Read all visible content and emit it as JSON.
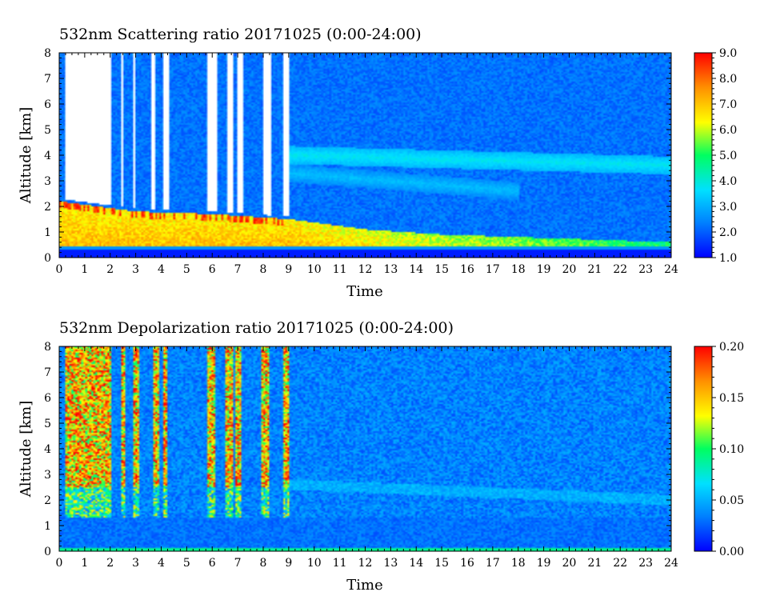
{
  "panels": [
    {
      "title": "532nm Scattering ratio  20171025 (0:00-24:00)",
      "xlabel": "Time",
      "ylabel": "Altitude [km]",
      "x_ticks": [
        "0",
        "1",
        "2",
        "3",
        "4",
        "5",
        "6",
        "7",
        "8",
        "9",
        "10",
        "11",
        "12",
        "13",
        "14",
        "15",
        "16",
        "17",
        "18",
        "19",
        "20",
        "21",
        "22",
        "23",
        "24"
      ],
      "y_ticks": [
        "0",
        "1",
        "2",
        "3",
        "4",
        "5",
        "6",
        "7",
        "8"
      ],
      "colorbar_ticks": [
        "1.0",
        "2.0",
        "3.0",
        "4.0",
        "5.0",
        "6.0",
        "7.0",
        "8.0",
        "9.0"
      ]
    },
    {
      "title": "532nm Depolarization ratio  20171025 (0:00-24:00)",
      "xlabel": "Time",
      "ylabel": "Altitude [km]",
      "x_ticks": [
        "0",
        "1",
        "2",
        "3",
        "4",
        "5",
        "6",
        "7",
        "8",
        "9",
        "10",
        "11",
        "12",
        "13",
        "14",
        "15",
        "16",
        "17",
        "18",
        "19",
        "20",
        "21",
        "22",
        "23",
        "24"
      ],
      "y_ticks": [
        "0",
        "1",
        "2",
        "3",
        "4",
        "5",
        "6",
        "7",
        "8"
      ],
      "colorbar_ticks": [
        "0.00",
        "0.05",
        "0.10",
        "0.15",
        "0.20"
      ]
    }
  ],
  "chart_data": [
    {
      "type": "heatmap",
      "title": "532nm Scattering ratio  20171025 (0:00-24:00)",
      "xlabel": "Time",
      "ylabel": "Altitude [km]",
      "xlim": [
        0,
        24
      ],
      "ylim": [
        0,
        8
      ],
      "colorbar_range": [
        1.0,
        9.0
      ],
      "colormap": [
        "#0000ff",
        "#0080ff",
        "#00e0ff",
        "#00ff60",
        "#ffff00",
        "#ff9000",
        "#ff0000"
      ],
      "features": {
        "boundary_layer_top_km": [
          [
            0,
            2.2
          ],
          [
            3,
            1.8
          ],
          [
            6,
            1.7
          ],
          [
            9,
            1.5
          ],
          [
            12,
            1.1
          ],
          [
            15,
            0.9
          ],
          [
            18,
            0.8
          ],
          [
            21,
            0.7
          ],
          [
            24,
            0.6
          ]
        ],
        "boundary_layer_value": 6.5,
        "elevated_layers": [
          {
            "start_time": 9,
            "end_time": 24,
            "alt_start_km": 4.0,
            "alt_end_km": 3.6,
            "value": 3.8
          },
          {
            "start_time": 9,
            "end_time": 18,
            "alt_start_km": 3.3,
            "alt_end_km": 2.6,
            "value": 3.2
          }
        ],
        "background_value": 2.2,
        "no_data_intervals": [
          [
            0.2,
            2.0
          ],
          [
            2.4,
            2.5
          ],
          [
            2.9,
            3.0
          ],
          [
            3.6,
            3.8
          ],
          [
            4.1,
            4.3
          ],
          [
            5.8,
            6.2
          ],
          [
            6.6,
            6.8
          ],
          [
            7.0,
            7.2
          ],
          [
            8.0,
            8.3
          ],
          [
            8.8,
            9.1
          ]
        ]
      }
    },
    {
      "type": "heatmap",
      "title": "532nm Depolarization ratio  20171025 (0:00-24:00)",
      "xlabel": "Time",
      "ylabel": "Altitude [km]",
      "xlim": [
        0,
        24
      ],
      "ylim": [
        0,
        8
      ],
      "colorbar_range": [
        0.0,
        0.2
      ],
      "colormap": [
        "#0000ff",
        "#0080ff",
        "#00e0ff",
        "#00ff60",
        "#ffff00",
        "#ff9000",
        "#ff0000"
      ],
      "features": {
        "cloud_columns": [
          [
            0.2,
            2.0
          ],
          [
            2.4,
            2.6
          ],
          [
            2.9,
            3.1
          ],
          [
            3.7,
            3.9
          ],
          [
            4.1,
            4.2
          ],
          [
            5.8,
            6.1
          ],
          [
            6.5,
            6.8
          ],
          [
            6.9,
            7.1
          ],
          [
            7.9,
            8.2
          ],
          [
            8.8,
            9.0
          ]
        ],
        "cloud_value": 0.15,
        "boundary_layer_value": 0.03,
        "background_value": 0.035,
        "surface_value": 0.09
      }
    }
  ]
}
